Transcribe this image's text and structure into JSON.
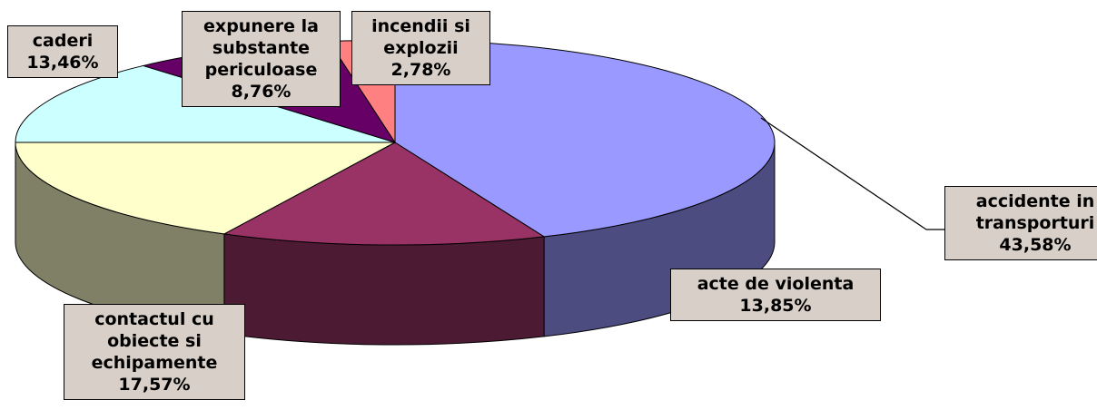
{
  "chart_data": {
    "type": "pie3d",
    "categories": [
      "accidente in transporturi",
      "acte de violenta",
      "contactul cu obiecte si echipamente",
      "caderi",
      "expunere la substante periculoase",
      "incendii si explozii"
    ],
    "values": [
      43.58,
      13.85,
      17.57,
      13.46,
      8.76,
      2.78
    ],
    "value_labels": [
      "43,58%",
      "13,85%",
      "17,57%",
      "13,46%",
      "8,76%",
      "2,78%"
    ],
    "colors": [
      "#9999ff",
      "#993366",
      "#ffffcc",
      "#ccffff",
      "#660066",
      "#ff8080"
    ],
    "side_colors": [
      "#4c4c80",
      "#4d1a33",
      "#808066",
      "#668080",
      "#330033",
      "#804040"
    ]
  }
}
